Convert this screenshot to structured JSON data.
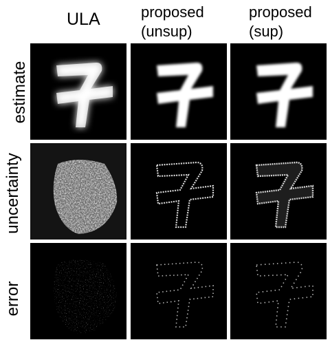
{
  "columns": [
    {
      "title": "ULA"
    },
    {
      "title_line1": "proposed",
      "title_line2": "(unsup)"
    },
    {
      "title_line1": "proposed",
      "title_line2": "(sup)"
    }
  ],
  "rows": [
    {
      "label": "estimate"
    },
    {
      "label": "uncertainty"
    },
    {
      "label": "error"
    }
  ],
  "colors": {
    "background": "#000000",
    "foreground": "#ffffff",
    "page": "#ffffff"
  }
}
